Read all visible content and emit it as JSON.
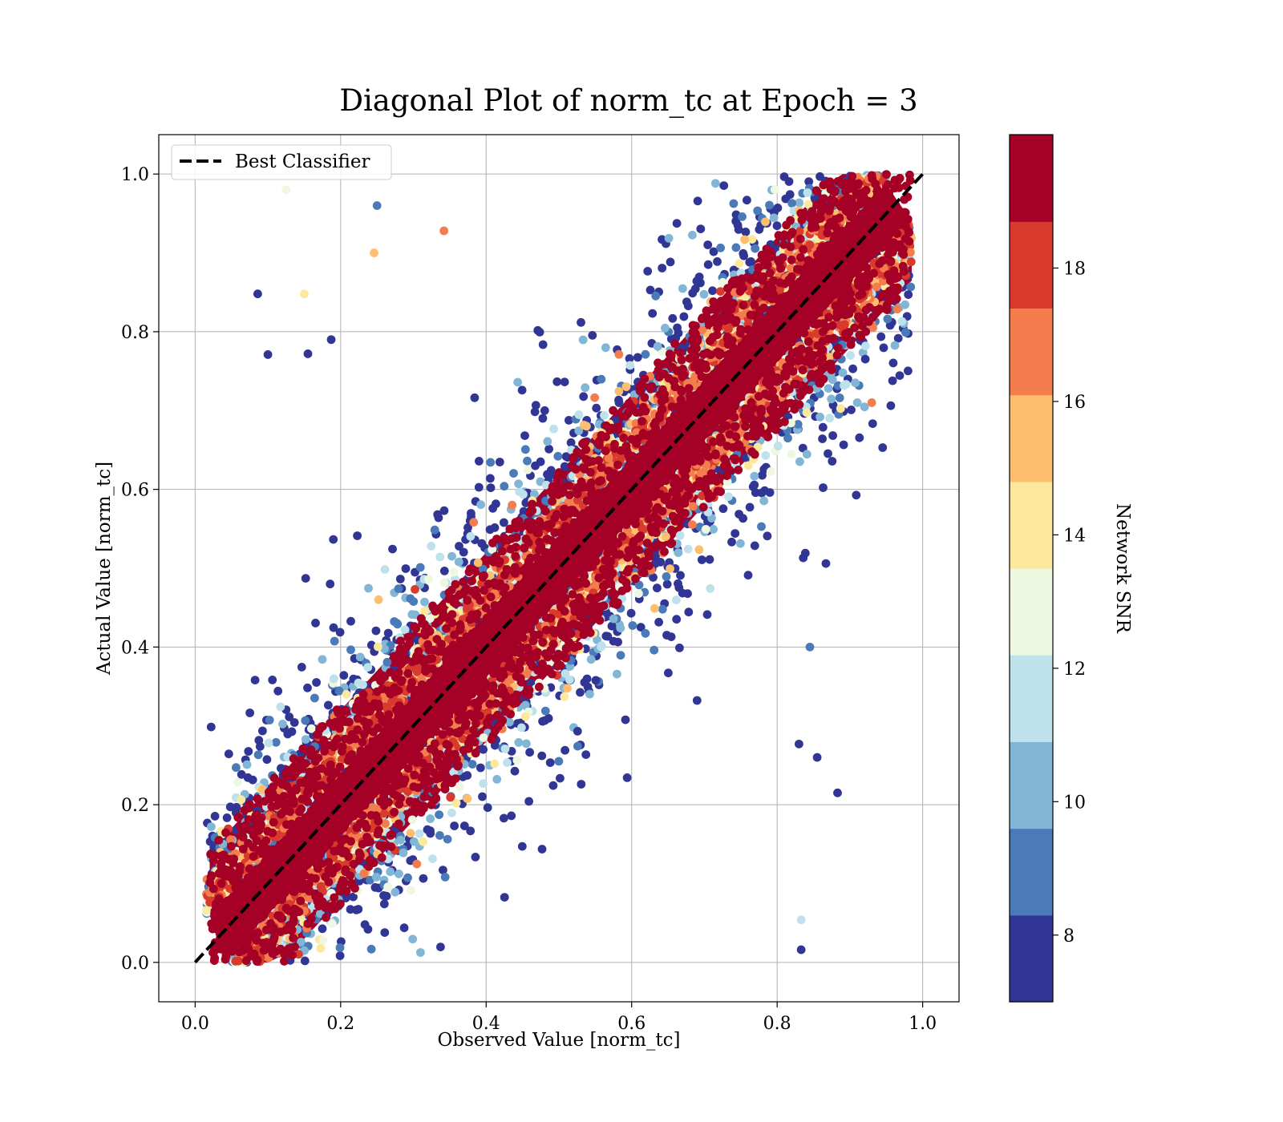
{
  "chart_data": {
    "type": "scatter",
    "title": "Diagonal Plot of norm_tc at Epoch = 3",
    "xlabel": "Observed Value [norm_tc]",
    "ylabel": "Actual Value [norm_tc]",
    "xlim": [
      -0.05,
      1.05
    ],
    "ylim": [
      -0.05,
      1.05
    ],
    "x_ticks": [
      "0.0",
      "0.2",
      "0.4",
      "0.6",
      "0.8",
      "1.0"
    ],
    "y_ticks": [
      "0.0",
      "0.2",
      "0.4",
      "0.6",
      "0.8",
      "1.0"
    ],
    "grid": true,
    "legend": {
      "placement": "upper-left",
      "entries": [
        {
          "label": "Best Classifier",
          "style": "dashed",
          "color": "#000000"
        }
      ]
    },
    "reference_line": {
      "name": "Best Classifier",
      "x": [
        0.0,
        1.0
      ],
      "y": [
        0.0,
        1.0
      ]
    },
    "colorbar": {
      "label": "Network SNR",
      "range": [
        7,
        20
      ],
      "ticks": [
        "8",
        "10",
        "12",
        "14",
        "16",
        "18"
      ],
      "tick_values": [
        8,
        10,
        12,
        14,
        16,
        18
      ],
      "colors": [
        "#313695",
        "#4a7ab7",
        "#82b6d6",
        "#bfe1ec",
        "#eef7e0",
        "#fde99d",
        "#fdbf6f",
        "#f47d4e",
        "#d83a2e",
        "#a50026"
      ]
    },
    "scatter_summary": {
      "dense_band": {
        "color": "#a50026",
        "snr": "20",
        "half_width": 0.06
      },
      "outliers": [
        {
          "x": 0.086,
          "y": 0.848,
          "snr": 7.2
        },
        {
          "x": 0.1,
          "y": 0.771,
          "snr": 7.2
        },
        {
          "x": 0.125,
          "y": 0.98,
          "snr": 12.8
        },
        {
          "x": 0.15,
          "y": 0.848,
          "snr": 14.2
        },
        {
          "x": 0.155,
          "y": 0.772,
          "snr": 7.2
        },
        {
          "x": 0.187,
          "y": 0.79,
          "snr": 7.2
        },
        {
          "x": 0.25,
          "y": 0.96,
          "snr": 9.0
        },
        {
          "x": 0.246,
          "y": 0.9,
          "snr": 15.8
        },
        {
          "x": 0.342,
          "y": 0.928,
          "snr": 17.0
        },
        {
          "x": 0.883,
          "y": 0.215,
          "snr": 7.2
        },
        {
          "x": 0.833,
          "y": 0.016,
          "snr": 7.2
        },
        {
          "x": 0.833,
          "y": 0.054,
          "snr": 11.2
        },
        {
          "x": 0.83,
          "y": 0.277,
          "snr": 7.2
        },
        {
          "x": 0.855,
          "y": 0.26,
          "snr": 7.2
        },
        {
          "x": 0.945,
          "y": 0.653,
          "snr": 7.2
        },
        {
          "x": 0.93,
          "y": 0.71,
          "snr": 17.2
        },
        {
          "x": 0.867,
          "y": 0.506,
          "snr": 7.2
        },
        {
          "x": 0.845,
          "y": 0.4,
          "snr": 9.0
        }
      ]
    }
  }
}
